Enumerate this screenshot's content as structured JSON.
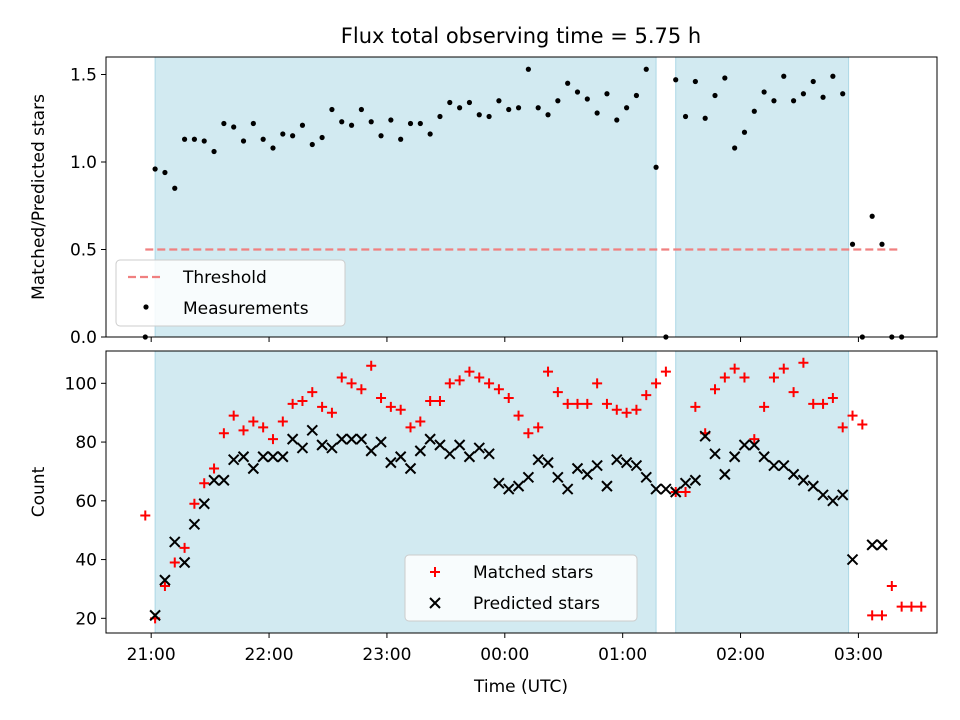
{
  "title": "Flux total observing time = 5.75 h",
  "xlabel": "Time (UTC)",
  "x_ticks": [
    "21:00",
    "22:00",
    "23:00",
    "00:00",
    "01:00",
    "02:00",
    "03:00"
  ],
  "colors": {
    "shade": "#add8e6",
    "threshold": "#f08080",
    "measurement": "#000000",
    "matched": "#ff0000",
    "predicted": "#000000"
  },
  "chart_data": [
    {
      "type": "scatter",
      "ylabel": "Matched/Predicted stars",
      "ylim": [
        0,
        1.6
      ],
      "y_ticks": [
        "0.0",
        "0.5",
        "1.0",
        "1.5"
      ],
      "xlim": [
        "20:37",
        "03:40"
      ],
      "shaded_intervals": [
        [
          "21:02",
          "01:17"
        ],
        [
          "01:27",
          "02:55"
        ]
      ],
      "threshold": {
        "label": "Threshold",
        "value": 0.5,
        "x_range": [
          "20:57",
          "03:20"
        ]
      },
      "legend": {
        "position": "lower-left",
        "entries": [
          "Threshold",
          "Measurements"
        ]
      },
      "series": [
        {
          "name": "Measurements",
          "marker": "dot",
          "points": [
            [
              "20:57",
              0.0
            ],
            [
              "21:02",
              0.96
            ],
            [
              "21:07",
              0.94
            ],
            [
              "21:12",
              0.85
            ],
            [
              "21:17",
              1.13
            ],
            [
              "21:22",
              1.13
            ],
            [
              "21:27",
              1.12
            ],
            [
              "21:32",
              1.06
            ],
            [
              "21:37",
              1.22
            ],
            [
              "21:42",
              1.2
            ],
            [
              "21:47",
              1.12
            ],
            [
              "21:52",
              1.22
            ],
            [
              "21:57",
              1.13
            ],
            [
              "22:02",
              1.08
            ],
            [
              "22:07",
              1.16
            ],
            [
              "22:12",
              1.15
            ],
            [
              "22:17",
              1.21
            ],
            [
              "22:22",
              1.1
            ],
            [
              "22:27",
              1.14
            ],
            [
              "22:32",
              1.3
            ],
            [
              "22:37",
              1.23
            ],
            [
              "22:42",
              1.21
            ],
            [
              "22:47",
              1.3
            ],
            [
              "22:52",
              1.23
            ],
            [
              "22:57",
              1.15
            ],
            [
              "23:02",
              1.24
            ],
            [
              "23:07",
              1.13
            ],
            [
              "23:12",
              1.22
            ],
            [
              "23:17",
              1.22
            ],
            [
              "23:22",
              1.16
            ],
            [
              "23:27",
              1.26
            ],
            [
              "23:32",
              1.34
            ],
            [
              "23:37",
              1.31
            ],
            [
              "23:42",
              1.34
            ],
            [
              "23:47",
              1.27
            ],
            [
              "23:52",
              1.26
            ],
            [
              "23:57",
              1.35
            ],
            [
              "00:02",
              1.3
            ],
            [
              "00:07",
              1.31
            ],
            [
              "00:12",
              1.53
            ],
            [
              "00:17",
              1.31
            ],
            [
              "00:22",
              1.27
            ],
            [
              "00:27",
              1.35
            ],
            [
              "00:32",
              1.45
            ],
            [
              "00:37",
              1.4
            ],
            [
              "00:42",
              1.36
            ],
            [
              "00:47",
              1.28
            ],
            [
              "00:52",
              1.39
            ],
            [
              "00:57",
              1.24
            ],
            [
              "01:02",
              1.31
            ],
            [
              "01:07",
              1.38
            ],
            [
              "01:12",
              1.53
            ],
            [
              "01:17",
              0.97
            ],
            [
              "01:22",
              0.0
            ],
            [
              "01:27",
              1.47
            ],
            [
              "01:32",
              1.26
            ],
            [
              "01:37",
              1.46
            ],
            [
              "01:42",
              1.25
            ],
            [
              "01:47",
              1.38
            ],
            [
              "01:52",
              1.48
            ],
            [
              "01:57",
              1.08
            ],
            [
              "02:02",
              1.17
            ],
            [
              "02:07",
              1.29
            ],
            [
              "02:12",
              1.4
            ],
            [
              "02:17",
              1.35
            ],
            [
              "02:22",
              1.49
            ],
            [
              "02:27",
              1.35
            ],
            [
              "02:32",
              1.39
            ],
            [
              "02:37",
              1.46
            ],
            [
              "02:42",
              1.37
            ],
            [
              "02:47",
              1.49
            ],
            [
              "02:52",
              1.39
            ],
            [
              "02:57",
              0.53
            ],
            [
              "03:02",
              0.0
            ],
            [
              "03:07",
              0.69
            ],
            [
              "03:12",
              0.53
            ],
            [
              "03:17",
              0.0
            ],
            [
              "03:22",
              0.0
            ]
          ]
        }
      ]
    },
    {
      "type": "scatter",
      "ylabel": "Count",
      "ylim": [
        15,
        111
      ],
      "y_ticks": [
        "20",
        "40",
        "60",
        "80",
        "100"
      ],
      "xlim": [
        "20:37",
        "03:40"
      ],
      "shaded_intervals": [
        [
          "21:02",
          "01:17"
        ],
        [
          "01:27",
          "02:55"
        ]
      ],
      "legend": {
        "position": "lower-right",
        "entries": [
          "Matched stars",
          "Predicted stars"
        ]
      },
      "series": [
        {
          "name": "Matched stars",
          "marker": "plus",
          "points": [
            [
              "20:57",
              55
            ],
            [
              "21:02",
              20
            ],
            [
              "21:07",
              31
            ],
            [
              "21:12",
              39
            ],
            [
              "21:17",
              44
            ],
            [
              "21:22",
              59
            ],
            [
              "21:27",
              66
            ],
            [
              "21:32",
              71
            ],
            [
              "21:37",
              83
            ],
            [
              "21:42",
              89
            ],
            [
              "21:47",
              84
            ],
            [
              "21:52",
              87
            ],
            [
              "21:57",
              85
            ],
            [
              "22:02",
              81
            ],
            [
              "22:07",
              87
            ],
            [
              "22:12",
              93
            ],
            [
              "22:17",
              94
            ],
            [
              "22:22",
              97
            ],
            [
              "22:27",
              92
            ],
            [
              "22:32",
              90
            ],
            [
              "22:37",
              102
            ],
            [
              "22:42",
              100
            ],
            [
              "22:47",
              98
            ],
            [
              "22:52",
              106
            ],
            [
              "22:57",
              95
            ],
            [
              "23:02",
              92
            ],
            [
              "23:07",
              91
            ],
            [
              "23:12",
              85
            ],
            [
              "23:17",
              87
            ],
            [
              "23:22",
              94
            ],
            [
              "23:27",
              94
            ],
            [
              "23:32",
              100
            ],
            [
              "23:37",
              101
            ],
            [
              "23:42",
              104
            ],
            [
              "23:47",
              102
            ],
            [
              "23:52",
              100
            ],
            [
              "23:57",
              98
            ],
            [
              "00:02",
              95
            ],
            [
              "00:07",
              89
            ],
            [
              "00:12",
              83
            ],
            [
              "00:17",
              85
            ],
            [
              "00:22",
              104
            ],
            [
              "00:27",
              97
            ],
            [
              "00:32",
              93
            ],
            [
              "00:37",
              93
            ],
            [
              "00:42",
              93
            ],
            [
              "00:47",
              100
            ],
            [
              "00:52",
              93
            ],
            [
              "00:57",
              91
            ],
            [
              "01:02",
              90
            ],
            [
              "01:07",
              91
            ],
            [
              "01:12",
              96
            ],
            [
              "01:17",
              100
            ],
            [
              "01:22",
              104
            ],
            [
              "01:27",
              63
            ],
            [
              "01:32",
              63
            ],
            [
              "01:37",
              92
            ],
            [
              "01:42",
              83
            ],
            [
              "01:47",
              98
            ],
            [
              "01:52",
              102
            ],
            [
              "01:57",
              105
            ],
            [
              "02:02",
              102
            ],
            [
              "02:07",
              81
            ],
            [
              "02:12",
              92
            ],
            [
              "02:17",
              102
            ],
            [
              "02:22",
              105
            ],
            [
              "02:27",
              97
            ],
            [
              "02:32",
              107
            ],
            [
              "02:37",
              93
            ],
            [
              "02:42",
              93
            ],
            [
              "02:47",
              95
            ],
            [
              "02:52",
              85
            ],
            [
              "02:57",
              89
            ],
            [
              "03:02",
              86
            ],
            [
              "03:07",
              21
            ],
            [
              "03:12",
              21
            ],
            [
              "03:17",
              31
            ],
            [
              "03:22",
              24
            ],
            [
              "03:27",
              24
            ],
            [
              "03:32",
              24
            ]
          ]
        },
        {
          "name": "Predicted stars",
          "marker": "x",
          "points": [
            [
              "21:02",
              21
            ],
            [
              "21:07",
              33
            ],
            [
              "21:12",
              46
            ],
            [
              "21:17",
              39
            ],
            [
              "21:22",
              52
            ],
            [
              "21:27",
              59
            ],
            [
              "21:32",
              67
            ],
            [
              "21:37",
              67
            ],
            [
              "21:42",
              74
            ],
            [
              "21:47",
              75
            ],
            [
              "21:52",
              71
            ],
            [
              "21:57",
              75
            ],
            [
              "22:02",
              75
            ],
            [
              "22:07",
              75
            ],
            [
              "22:12",
              81
            ],
            [
              "22:17",
              78
            ],
            [
              "22:22",
              84
            ],
            [
              "22:27",
              79
            ],
            [
              "22:32",
              78
            ],
            [
              "22:37",
              81
            ],
            [
              "22:42",
              81
            ],
            [
              "22:47",
              81
            ],
            [
              "22:52",
              77
            ],
            [
              "22:57",
              80
            ],
            [
              "23:02",
              73
            ],
            [
              "23:07",
              75
            ],
            [
              "23:12",
              71
            ],
            [
              "23:17",
              77
            ],
            [
              "23:22",
              81
            ],
            [
              "23:27",
              79
            ],
            [
              "23:32",
              76
            ],
            [
              "23:37",
              79
            ],
            [
              "23:42",
              75
            ],
            [
              "23:47",
              78
            ],
            [
              "23:52",
              76
            ],
            [
              "23:57",
              66
            ],
            [
              "00:02",
              64
            ],
            [
              "00:07",
              65
            ],
            [
              "00:12",
              68
            ],
            [
              "00:17",
              74
            ],
            [
              "00:22",
              73
            ],
            [
              "00:27",
              68
            ],
            [
              "00:32",
              64
            ],
            [
              "00:37",
              71
            ],
            [
              "00:42",
              69
            ],
            [
              "00:47",
              72
            ],
            [
              "00:52",
              65
            ],
            [
              "00:57",
              74
            ],
            [
              "01:02",
              73
            ],
            [
              "01:07",
              72
            ],
            [
              "01:12",
              68
            ],
            [
              "01:17",
              64
            ],
            [
              "01:22",
              64
            ],
            [
              "01:27",
              63
            ],
            [
              "01:32",
              66
            ],
            [
              "01:37",
              67
            ],
            [
              "01:42",
              82
            ],
            [
              "01:47",
              76
            ],
            [
              "01:52",
              69
            ],
            [
              "01:57",
              75
            ],
            [
              "02:02",
              79
            ],
            [
              "02:07",
              79
            ],
            [
              "02:12",
              75
            ],
            [
              "02:17",
              72
            ],
            [
              "02:22",
              72
            ],
            [
              "02:27",
              69
            ],
            [
              "02:32",
              67
            ],
            [
              "02:37",
              65
            ],
            [
              "02:42",
              62
            ],
            [
              "02:47",
              60
            ],
            [
              "02:52",
              62
            ],
            [
              "02:57",
              40
            ],
            [
              "03:07",
              45
            ],
            [
              "03:12",
              45
            ]
          ]
        }
      ]
    }
  ]
}
